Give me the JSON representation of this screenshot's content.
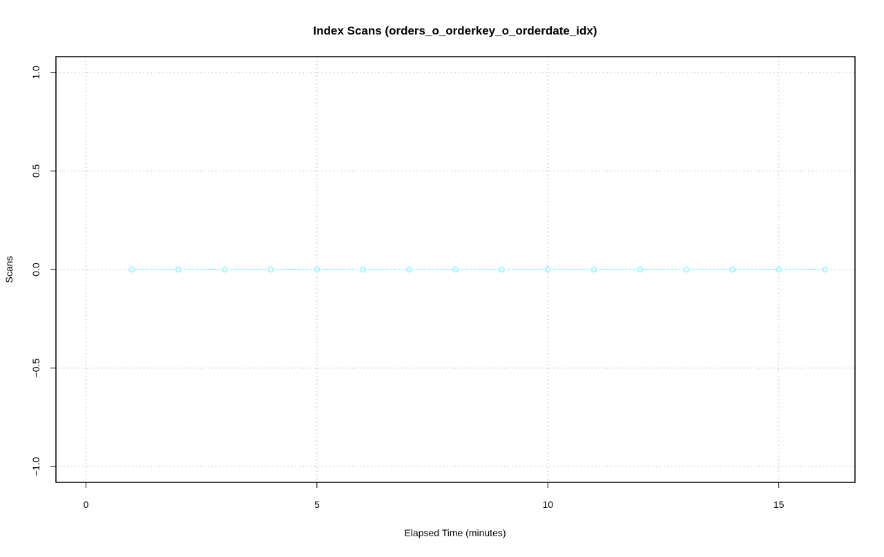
{
  "chart_data": {
    "type": "line",
    "title": "Index Scans (orders_o_orderkey_o_orderdate_idx)",
    "xlabel": "Elapsed Time (minutes)",
    "ylabel": "Scans",
    "xlim": [
      -0.65,
      16.65
    ],
    "ylim": [
      -1.08,
      1.08
    ],
    "xticks": [
      0,
      5,
      10,
      15
    ],
    "xtick_labels": [
      "0",
      "5",
      "10",
      "15"
    ],
    "yticks": [
      -1.0,
      -0.5,
      0.0,
      0.5,
      1.0
    ],
    "ytick_labels": [
      "−1.0",
      "−0.5",
      "0.0",
      "0.5",
      "1.0"
    ],
    "grid": true,
    "series": [
      {
        "color": "#7FFFFF",
        "x": [
          1,
          2,
          3,
          4,
          5,
          6,
          7,
          8,
          9,
          10,
          11,
          12,
          13,
          14,
          15,
          16
        ],
        "y": [
          0,
          0,
          0,
          0,
          0,
          0,
          0,
          0,
          0,
          0,
          0,
          0,
          0,
          0,
          0,
          0
        ]
      }
    ]
  }
}
